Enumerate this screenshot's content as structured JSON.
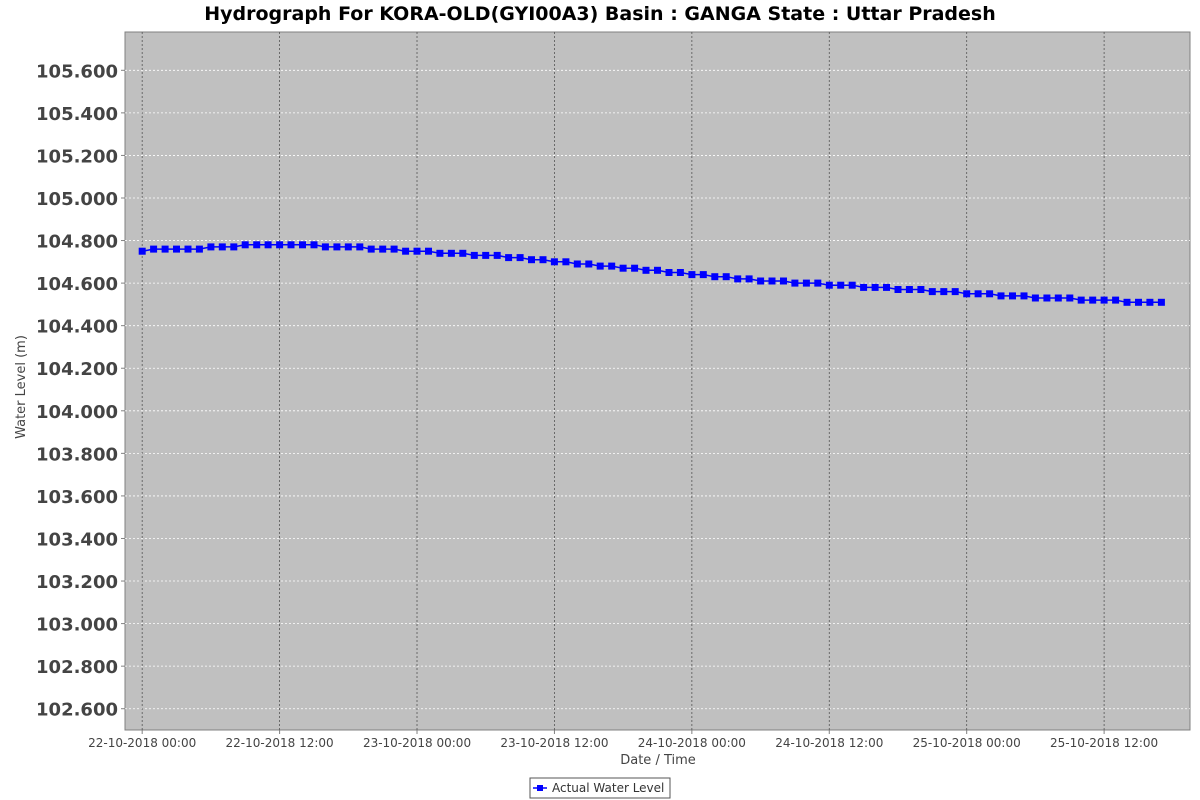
{
  "chart_data": {
    "type": "line",
    "title": "Hydrograph For KORA-OLD(GYI00A3) Basin : GANGA State : Uttar Pradesh",
    "xlabel": "Date / Time",
    "ylabel": "Water Level (m)",
    "x_start": "22-10-2018 00:00",
    "x_interval_hours": 1,
    "xlim": [
      "21-10-2018 22:30",
      "25-10-2018 19:30"
    ],
    "x_ticks": [
      "22-10-2018 00:00",
      "22-10-2018 12:00",
      "23-10-2018 00:00",
      "23-10-2018 12:00",
      "24-10-2018 00:00",
      "24-10-2018 12:00",
      "25-10-2018 00:00",
      "25-10-2018 12:00"
    ],
    "ylim": [
      102.5,
      105.78
    ],
    "y_ticks": [
      "102.600",
      "102.800",
      "103.000",
      "103.200",
      "103.400",
      "103.600",
      "103.800",
      "104.000",
      "104.200",
      "104.400",
      "104.600",
      "104.800",
      "105.000",
      "105.200",
      "105.400",
      "105.600"
    ],
    "grid": true,
    "legend_position": "bottom-center",
    "series": [
      {
        "name": "Actual Water Level",
        "color": "#0000ff",
        "marker": "square",
        "values": [
          104.75,
          104.76,
          104.76,
          104.76,
          104.76,
          104.76,
          104.77,
          104.77,
          104.77,
          104.78,
          104.78,
          104.78,
          104.78,
          104.78,
          104.78,
          104.78,
          104.77,
          104.77,
          104.77,
          104.77,
          104.76,
          104.76,
          104.76,
          104.75,
          104.75,
          104.75,
          104.74,
          104.74,
          104.74,
          104.73,
          104.73,
          104.73,
          104.72,
          104.72,
          104.71,
          104.71,
          104.7,
          104.7,
          104.69,
          104.69,
          104.68,
          104.68,
          104.67,
          104.67,
          104.66,
          104.66,
          104.65,
          104.65,
          104.64,
          104.64,
          104.63,
          104.63,
          104.62,
          104.62,
          104.61,
          104.61,
          104.61,
          104.6,
          104.6,
          104.6,
          104.59,
          104.59,
          104.59,
          104.58,
          104.58,
          104.58,
          104.57,
          104.57,
          104.57,
          104.56,
          104.56,
          104.56,
          104.55,
          104.55,
          104.55,
          104.54,
          104.54,
          104.54,
          104.53,
          104.53,
          104.53,
          104.53,
          104.52,
          104.52,
          104.52,
          104.52,
          104.51,
          104.51,
          104.51,
          104.51
        ]
      }
    ]
  },
  "colors": {
    "plot_background": "#c0c0c0",
    "grid": "#ffffff",
    "series": "#0000ff"
  }
}
